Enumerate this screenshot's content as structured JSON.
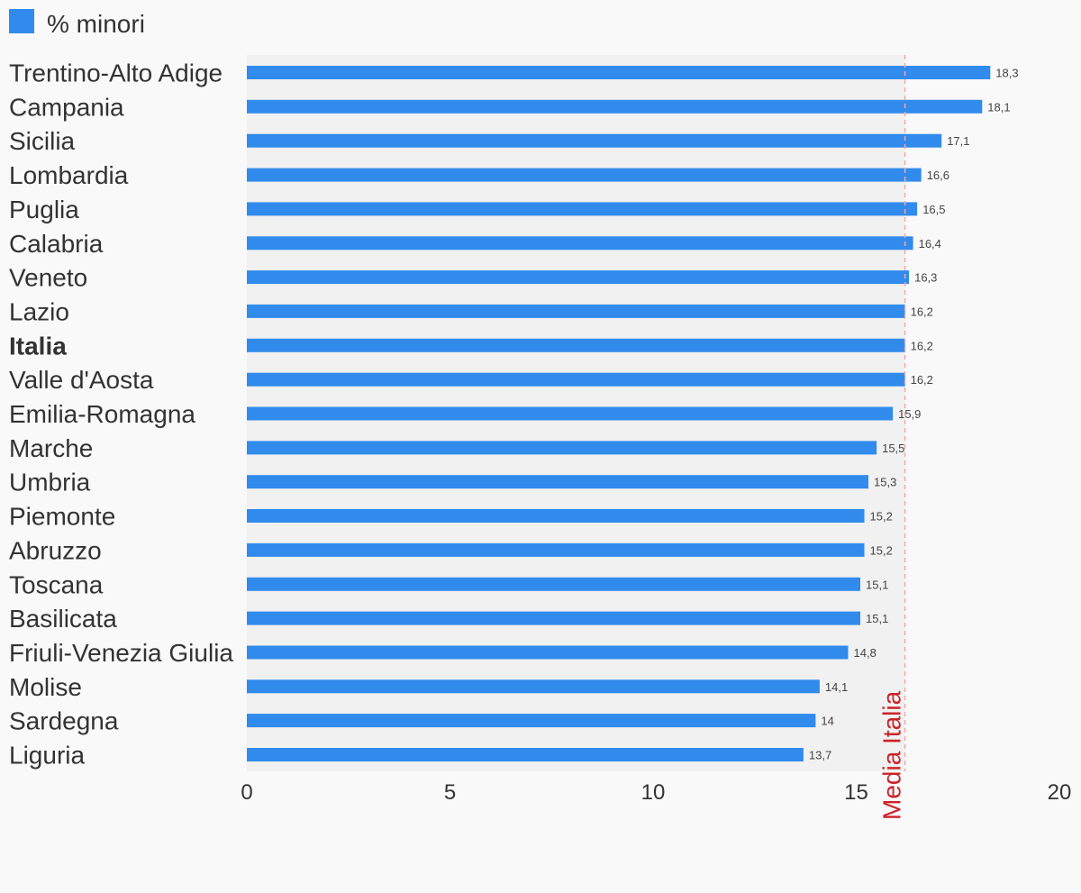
{
  "legend": {
    "label": "% minori",
    "color": "#318bec"
  },
  "chart_data": {
    "type": "bar",
    "orientation": "horizontal",
    "categories": [
      "Trentino-Alto Adige",
      "Campania",
      "Sicilia",
      "Lombardia",
      "Puglia",
      "Calabria",
      "Veneto",
      "Lazio",
      "Italia",
      "Valle d'Aosta",
      "Emilia-Romagna",
      "Marche",
      "Umbria",
      "Piemonte",
      "Abruzzo",
      "Toscana",
      "Basilicata",
      "Friuli-Venezia Giulia",
      "Molise",
      "Sardegna",
      "Liguria"
    ],
    "highlight_category": "Italia",
    "series": [
      {
        "name": "% minori",
        "color": "#318bec",
        "values": [
          18.3,
          18.1,
          17.1,
          16.6,
          16.5,
          16.4,
          16.3,
          16.2,
          16.2,
          16.2,
          15.9,
          15.5,
          15.3,
          15.2,
          15.2,
          15.1,
          15.1,
          14.8,
          14.1,
          14,
          13.7
        ],
        "data_labels": [
          "18,3",
          "18,1",
          "17,1",
          "16,6",
          "16,5",
          "16,4",
          "16,3",
          "16,2",
          "16,2",
          "16,2",
          "15,9",
          "15,5",
          "15,3",
          "15,2",
          "15,2",
          "15,1",
          "15,1",
          "14,8",
          "14,1",
          "14",
          "13,7"
        ]
      }
    ],
    "xlim": [
      0,
      20
    ],
    "xticks": [
      0,
      5,
      10,
      15,
      20
    ],
    "reference_line": {
      "value": 16.2,
      "label": "Media Italia",
      "color": "#cc2229",
      "style": "dashed"
    },
    "plot_background": "#f1f1f1",
    "legend_position": "top-left",
    "grid": false
  }
}
